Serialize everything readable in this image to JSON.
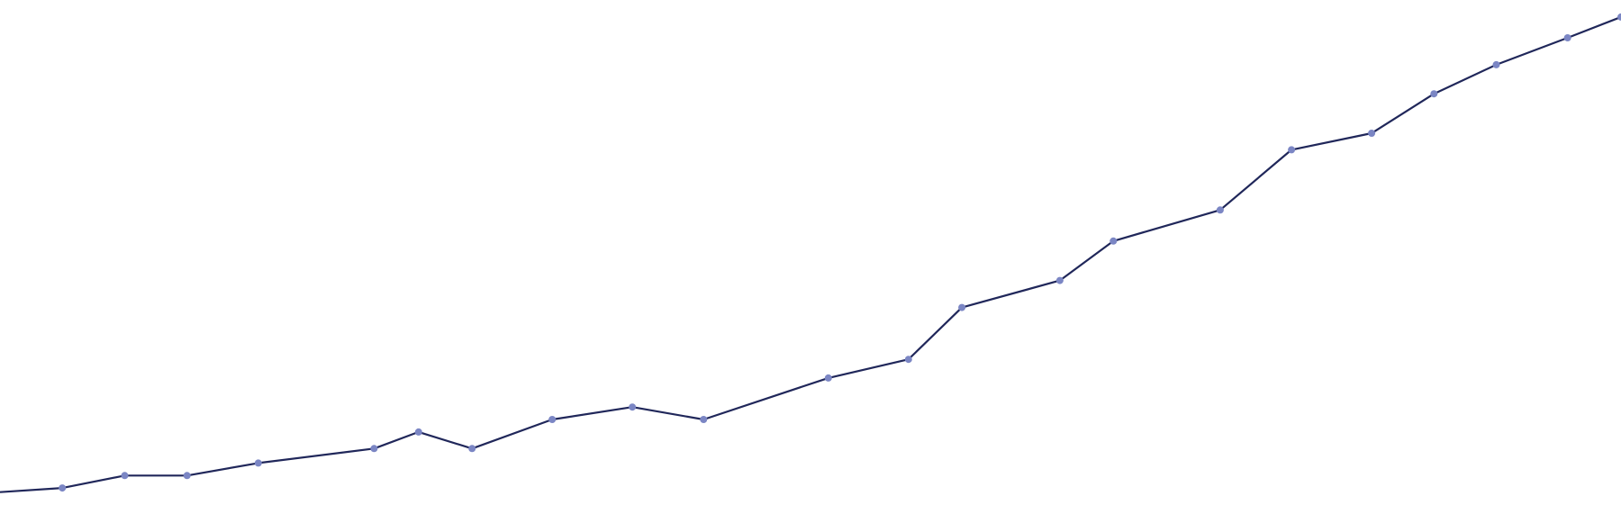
{
  "chart_data": {
    "type": "line",
    "title": "",
    "xlabel": "",
    "ylabel": "",
    "grid": false,
    "legend": "none",
    "x": [
      -2,
      5,
      12,
      19,
      27,
      40,
      45,
      51,
      60,
      69,
      77,
      91,
      100,
      106,
      117,
      123,
      135,
      143,
      152,
      159,
      166,
      174,
      180
    ],
    "series": [
      {
        "values": [
          1,
          3,
          9,
          9,
          15,
          22,
          30,
          22,
          36,
          42,
          36,
          56,
          65,
          90,
          103,
          122,
          137,
          166,
          174,
          193,
          207,
          220,
          230
        ]
      }
    ],
    "xlim": [
      -2,
      180
    ],
    "ylim": [
      0,
      233
    ],
    "line_color": "#20275a",
    "marker_color": "#7b86c4"
  }
}
